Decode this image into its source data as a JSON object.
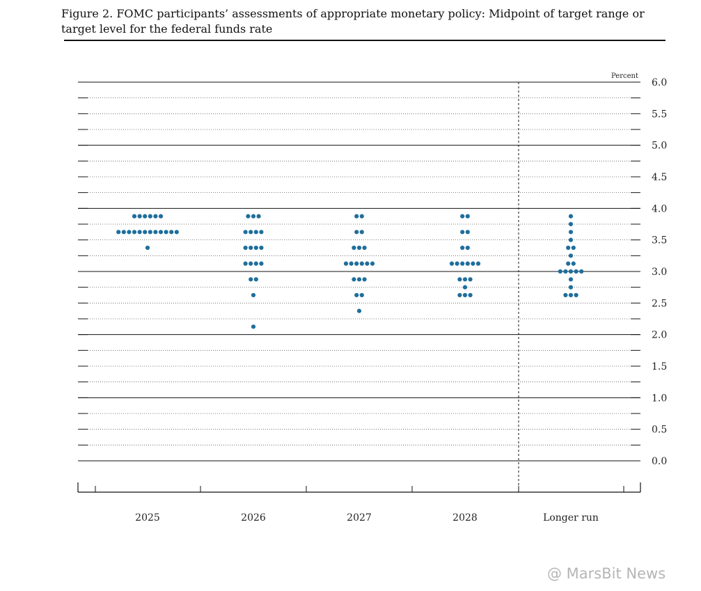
{
  "title": "Figure 2. FOMC participants’ assessments of appropriate monetary policy: Midpoint of target range or target level for the federal funds rate",
  "watermark": "@ MarsBit News",
  "colors": {
    "dot": "#1f6e9c",
    "line": "#111111"
  },
  "chart_data": {
    "type": "scatter",
    "title": "Figure 2. FOMC participants’ assessments of appropriate monetary policy: Midpoint of target range or target level for the federal funds rate",
    "ylabel": "Percent",
    "ylim": [
      0,
      6
    ],
    "yticks": [
      "6.0",
      "5.5",
      "5.0",
      "4.5",
      "4.0",
      "3.5",
      "3.0",
      "2.5",
      "2.0",
      "1.5",
      "1.0",
      "0.5",
      "0.0"
    ],
    "categories": [
      "2025",
      "2026",
      "2027",
      "2028",
      "Longer run"
    ],
    "grid": "dotted",
    "counts": [
      {
        "category": "2025",
        "points": [
          {
            "rate": 3.875,
            "count": 6
          },
          {
            "rate": 3.625,
            "count": 12
          },
          {
            "rate": 3.375,
            "count": 1
          }
        ]
      },
      {
        "category": "2026",
        "points": [
          {
            "rate": 3.875,
            "count": 3
          },
          {
            "rate": 3.625,
            "count": 4
          },
          {
            "rate": 3.375,
            "count": 4
          },
          {
            "rate": 3.125,
            "count": 4
          },
          {
            "rate": 2.875,
            "count": 2
          },
          {
            "rate": 2.625,
            "count": 1
          },
          {
            "rate": 2.125,
            "count": 1
          }
        ]
      },
      {
        "category": "2027",
        "points": [
          {
            "rate": 3.875,
            "count": 2
          },
          {
            "rate": 3.625,
            "count": 2
          },
          {
            "rate": 3.375,
            "count": 3
          },
          {
            "rate": 3.125,
            "count": 6
          },
          {
            "rate": 2.875,
            "count": 3
          },
          {
            "rate": 2.625,
            "count": 2
          },
          {
            "rate": 2.375,
            "count": 1
          }
        ]
      },
      {
        "category": "2028",
        "points": [
          {
            "rate": 3.875,
            "count": 2
          },
          {
            "rate": 3.625,
            "count": 2
          },
          {
            "rate": 3.375,
            "count": 2
          },
          {
            "rate": 3.125,
            "count": 6
          },
          {
            "rate": 2.875,
            "count": 3
          },
          {
            "rate": 2.75,
            "count": 1
          },
          {
            "rate": 2.625,
            "count": 3
          }
        ]
      },
      {
        "category": "Longer run",
        "points": [
          {
            "rate": 3.875,
            "count": 1
          },
          {
            "rate": 3.75,
            "count": 1
          },
          {
            "rate": 3.625,
            "count": 1
          },
          {
            "rate": 3.5,
            "count": 1
          },
          {
            "rate": 3.375,
            "count": 2
          },
          {
            "rate": 3.25,
            "count": 1
          },
          {
            "rate": 3.125,
            "count": 2
          },
          {
            "rate": 3.0,
            "count": 5
          },
          {
            "rate": 2.875,
            "count": 1
          },
          {
            "rate": 2.75,
            "count": 1
          },
          {
            "rate": 2.625,
            "count": 3
          }
        ]
      }
    ]
  }
}
